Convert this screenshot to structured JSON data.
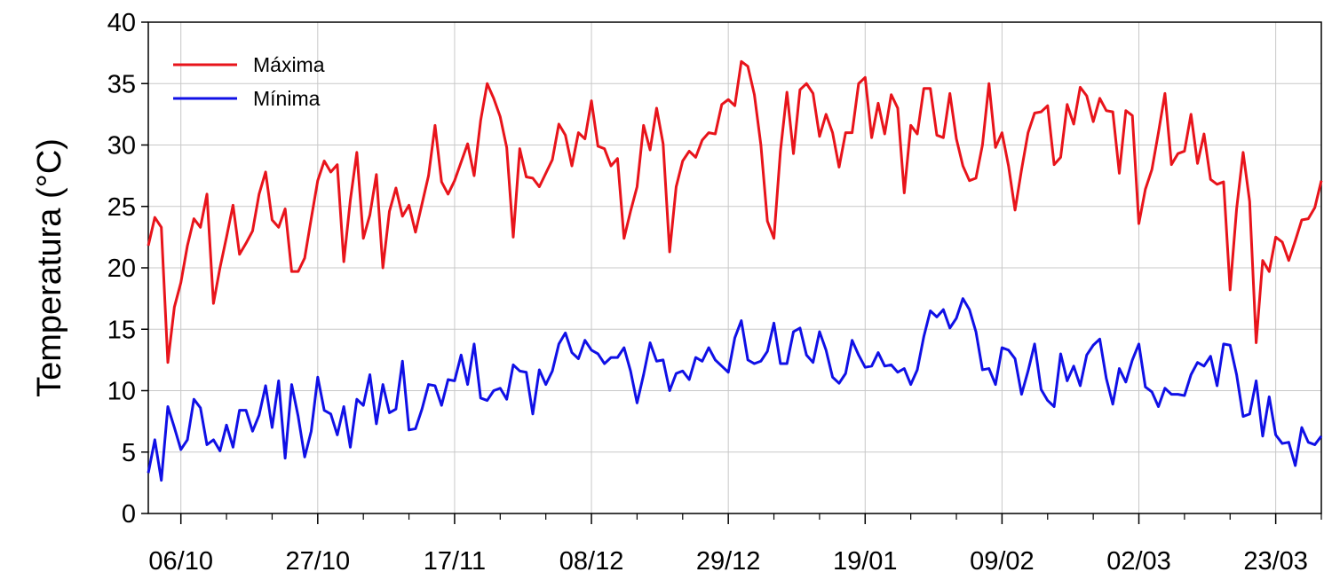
{
  "chart_data": {
    "type": "line",
    "ylabel": "Temperatura (°C)",
    "categories": [
      null,
      null,
      null,
      null,
      null,
      "06/10",
      null,
      null,
      null,
      null,
      null,
      null,
      null,
      null,
      null,
      null,
      null,
      null,
      null,
      null,
      null,
      null,
      null,
      null,
      null,
      null,
      "27/10",
      null,
      null,
      null,
      null,
      null,
      null,
      null,
      null,
      null,
      null,
      null,
      null,
      null,
      null,
      null,
      null,
      null,
      null,
      null,
      null,
      "17/11",
      null,
      null,
      null,
      null,
      null,
      null,
      null,
      null,
      null,
      null,
      null,
      null,
      null,
      null,
      null,
      null,
      null,
      null,
      null,
      null,
      "08/12",
      null,
      null,
      null,
      null,
      null,
      null,
      null,
      null,
      null,
      null,
      null,
      null,
      null,
      null,
      null,
      null,
      null,
      null,
      null,
      null,
      "29/12",
      null,
      null,
      null,
      null,
      null,
      null,
      null,
      null,
      null,
      null,
      null,
      null,
      null,
      null,
      null,
      null,
      null,
      null,
      null,
      null,
      "19/01",
      null,
      null,
      null,
      null,
      null,
      null,
      null,
      null,
      null,
      null,
      null,
      null,
      null,
      null,
      null,
      null,
      null,
      null,
      null,
      null,
      "09/02",
      null,
      null,
      null,
      null,
      null,
      null,
      null,
      null,
      null,
      null,
      null,
      null,
      null,
      null,
      null,
      null,
      null,
      null,
      null,
      null,
      "02/03",
      null,
      null,
      null,
      null,
      null,
      null,
      null,
      null,
      null,
      null,
      null,
      null,
      null,
      null,
      null,
      null,
      null,
      null,
      null,
      null,
      "23/03",
      null,
      null,
      null,
      null,
      null,
      null,
      null
    ],
    "series": [
      {
        "name": "Máxima",
        "color": "#e8141b",
        "values": [
          21.8,
          24.1,
          23.3,
          12.3,
          16.8,
          18.8,
          21.8,
          24.0,
          23.3,
          26.0,
          17.1,
          20.0,
          22.5,
          25.1,
          21.1,
          22.0,
          23.0,
          26.0,
          27.8,
          23.9,
          23.3,
          24.8,
          19.7,
          19.7,
          20.8,
          24.0,
          27.1,
          28.7,
          27.8,
          28.4,
          20.5,
          25.5,
          29.4,
          22.4,
          24.3,
          27.6,
          20.0,
          24.6,
          26.5,
          24.2,
          25.1,
          22.9,
          25.2,
          27.5,
          31.6,
          27.0,
          26.0,
          27.1,
          28.6,
          30.1,
          27.5,
          32.0,
          35.0,
          33.8,
          32.3,
          29.8,
          22.5,
          29.7,
          27.4,
          27.3,
          26.6,
          27.7,
          28.8,
          31.7,
          30.8,
          28.3,
          31.0,
          30.5,
          33.6,
          29.9,
          29.7,
          28.3,
          28.9,
          22.4,
          24.6,
          26.6,
          31.6,
          29.6,
          33.0,
          30.1,
          21.3,
          26.6,
          28.7,
          29.5,
          29.0,
          30.4,
          31.0,
          30.9,
          33.3,
          33.7,
          33.2,
          36.8,
          36.4,
          34.1,
          30.0,
          23.8,
          22.4,
          29.5,
          34.3,
          29.3,
          34.5,
          35.0,
          34.2,
          30.7,
          32.5,
          31.0,
          28.2,
          31.0,
          31.0,
          35.0,
          35.5,
          30.6,
          33.4,
          30.9,
          34.1,
          33.0,
          26.1,
          31.6,
          30.9,
          34.6,
          34.6,
          30.8,
          30.6,
          34.2,
          30.5,
          28.3,
          27.1,
          27.3,
          30.0,
          35.0,
          29.8,
          31.0,
          28.3,
          24.7,
          28.0,
          31.0,
          32.6,
          32.7,
          33.2,
          28.4,
          29.0,
          33.3,
          31.7,
          34.7,
          34.0,
          31.9,
          33.8,
          32.8,
          32.7,
          27.7,
          32.8,
          32.4,
          23.6,
          26.4,
          28.0,
          31.0,
          34.2,
          28.4,
          29.3,
          29.5,
          32.5,
          28.5,
          30.9,
          27.2,
          26.8,
          27.0,
          18.2,
          24.8,
          29.4,
          25.4,
          13.9,
          20.6,
          19.7,
          22.5,
          22.1,
          20.6,
          22.2,
          23.9,
          24.0,
          24.9,
          27.1
        ]
      },
      {
        "name": "Mínima",
        "color": "#1010e6",
        "values": [
          3.3,
          6.0,
          2.7,
          8.7,
          7.0,
          5.2,
          6.0,
          9.3,
          8.6,
          5.6,
          6.0,
          5.1,
          7.2,
          5.4,
          8.4,
          8.4,
          6.7,
          8.0,
          10.4,
          7.0,
          10.8,
          4.5,
          10.5,
          7.9,
          4.6,
          6.7,
          11.1,
          8.4,
          8.1,
          6.4,
          8.7,
          5.4,
          9.3,
          8.8,
          11.3,
          7.3,
          10.5,
          8.2,
          8.5,
          12.4,
          6.8,
          6.9,
          8.5,
          10.5,
          10.4,
          8.8,
          10.9,
          10.8,
          12.9,
          10.5,
          13.8,
          9.4,
          9.2,
          10.0,
          10.2,
          9.3,
          12.1,
          11.6,
          11.5,
          8.1,
          11.7,
          10.5,
          11.6,
          13.8,
          14.7,
          13.1,
          12.6,
          14.1,
          13.3,
          13.0,
          12.2,
          12.7,
          12.7,
          13.5,
          11.6,
          9.0,
          11.3,
          13.9,
          12.4,
          12.5,
          10.0,
          11.4,
          11.6,
          10.9,
          12.7,
          12.4,
          13.5,
          12.5,
          12.0,
          11.5,
          14.3,
          15.7,
          12.5,
          12.2,
          12.4,
          13.2,
          15.5,
          12.2,
          12.2,
          14.8,
          15.1,
          12.9,
          12.3,
          14.8,
          13.3,
          11.1,
          10.6,
          11.4,
          14.1,
          12.9,
          11.9,
          12.0,
          13.1,
          12.0,
          12.1,
          11.5,
          11.8,
          10.5,
          11.7,
          14.4,
          16.5,
          16.0,
          16.6,
          15.1,
          15.9,
          17.5,
          16.6,
          14.8,
          11.7,
          11.8,
          10.5,
          13.5,
          13.3,
          12.6,
          9.7,
          11.6,
          13.8,
          10.1,
          9.2,
          8.7,
          13.0,
          10.8,
          12.0,
          10.4,
          12.9,
          13.7,
          14.2,
          11.0,
          8.9,
          11.8,
          10.7,
          12.5,
          13.8,
          10.3,
          9.9,
          8.7,
          10.2,
          9.7,
          9.7,
          9.6,
          11.3,
          12.3,
          12.0,
          12.8,
          10.4,
          13.8,
          13.7,
          11.3,
          7.9,
          8.1,
          10.8,
          6.3,
          9.5,
          6.4,
          5.7,
          5.8,
          3.9,
          7.0,
          5.8,
          5.6,
          6.3
        ]
      }
    ],
    "ylim": [
      0,
      40
    ],
    "yticks": [
      0,
      5,
      10,
      15,
      20,
      25,
      30,
      35,
      40
    ],
    "grid": true,
    "legend": "upper left"
  }
}
